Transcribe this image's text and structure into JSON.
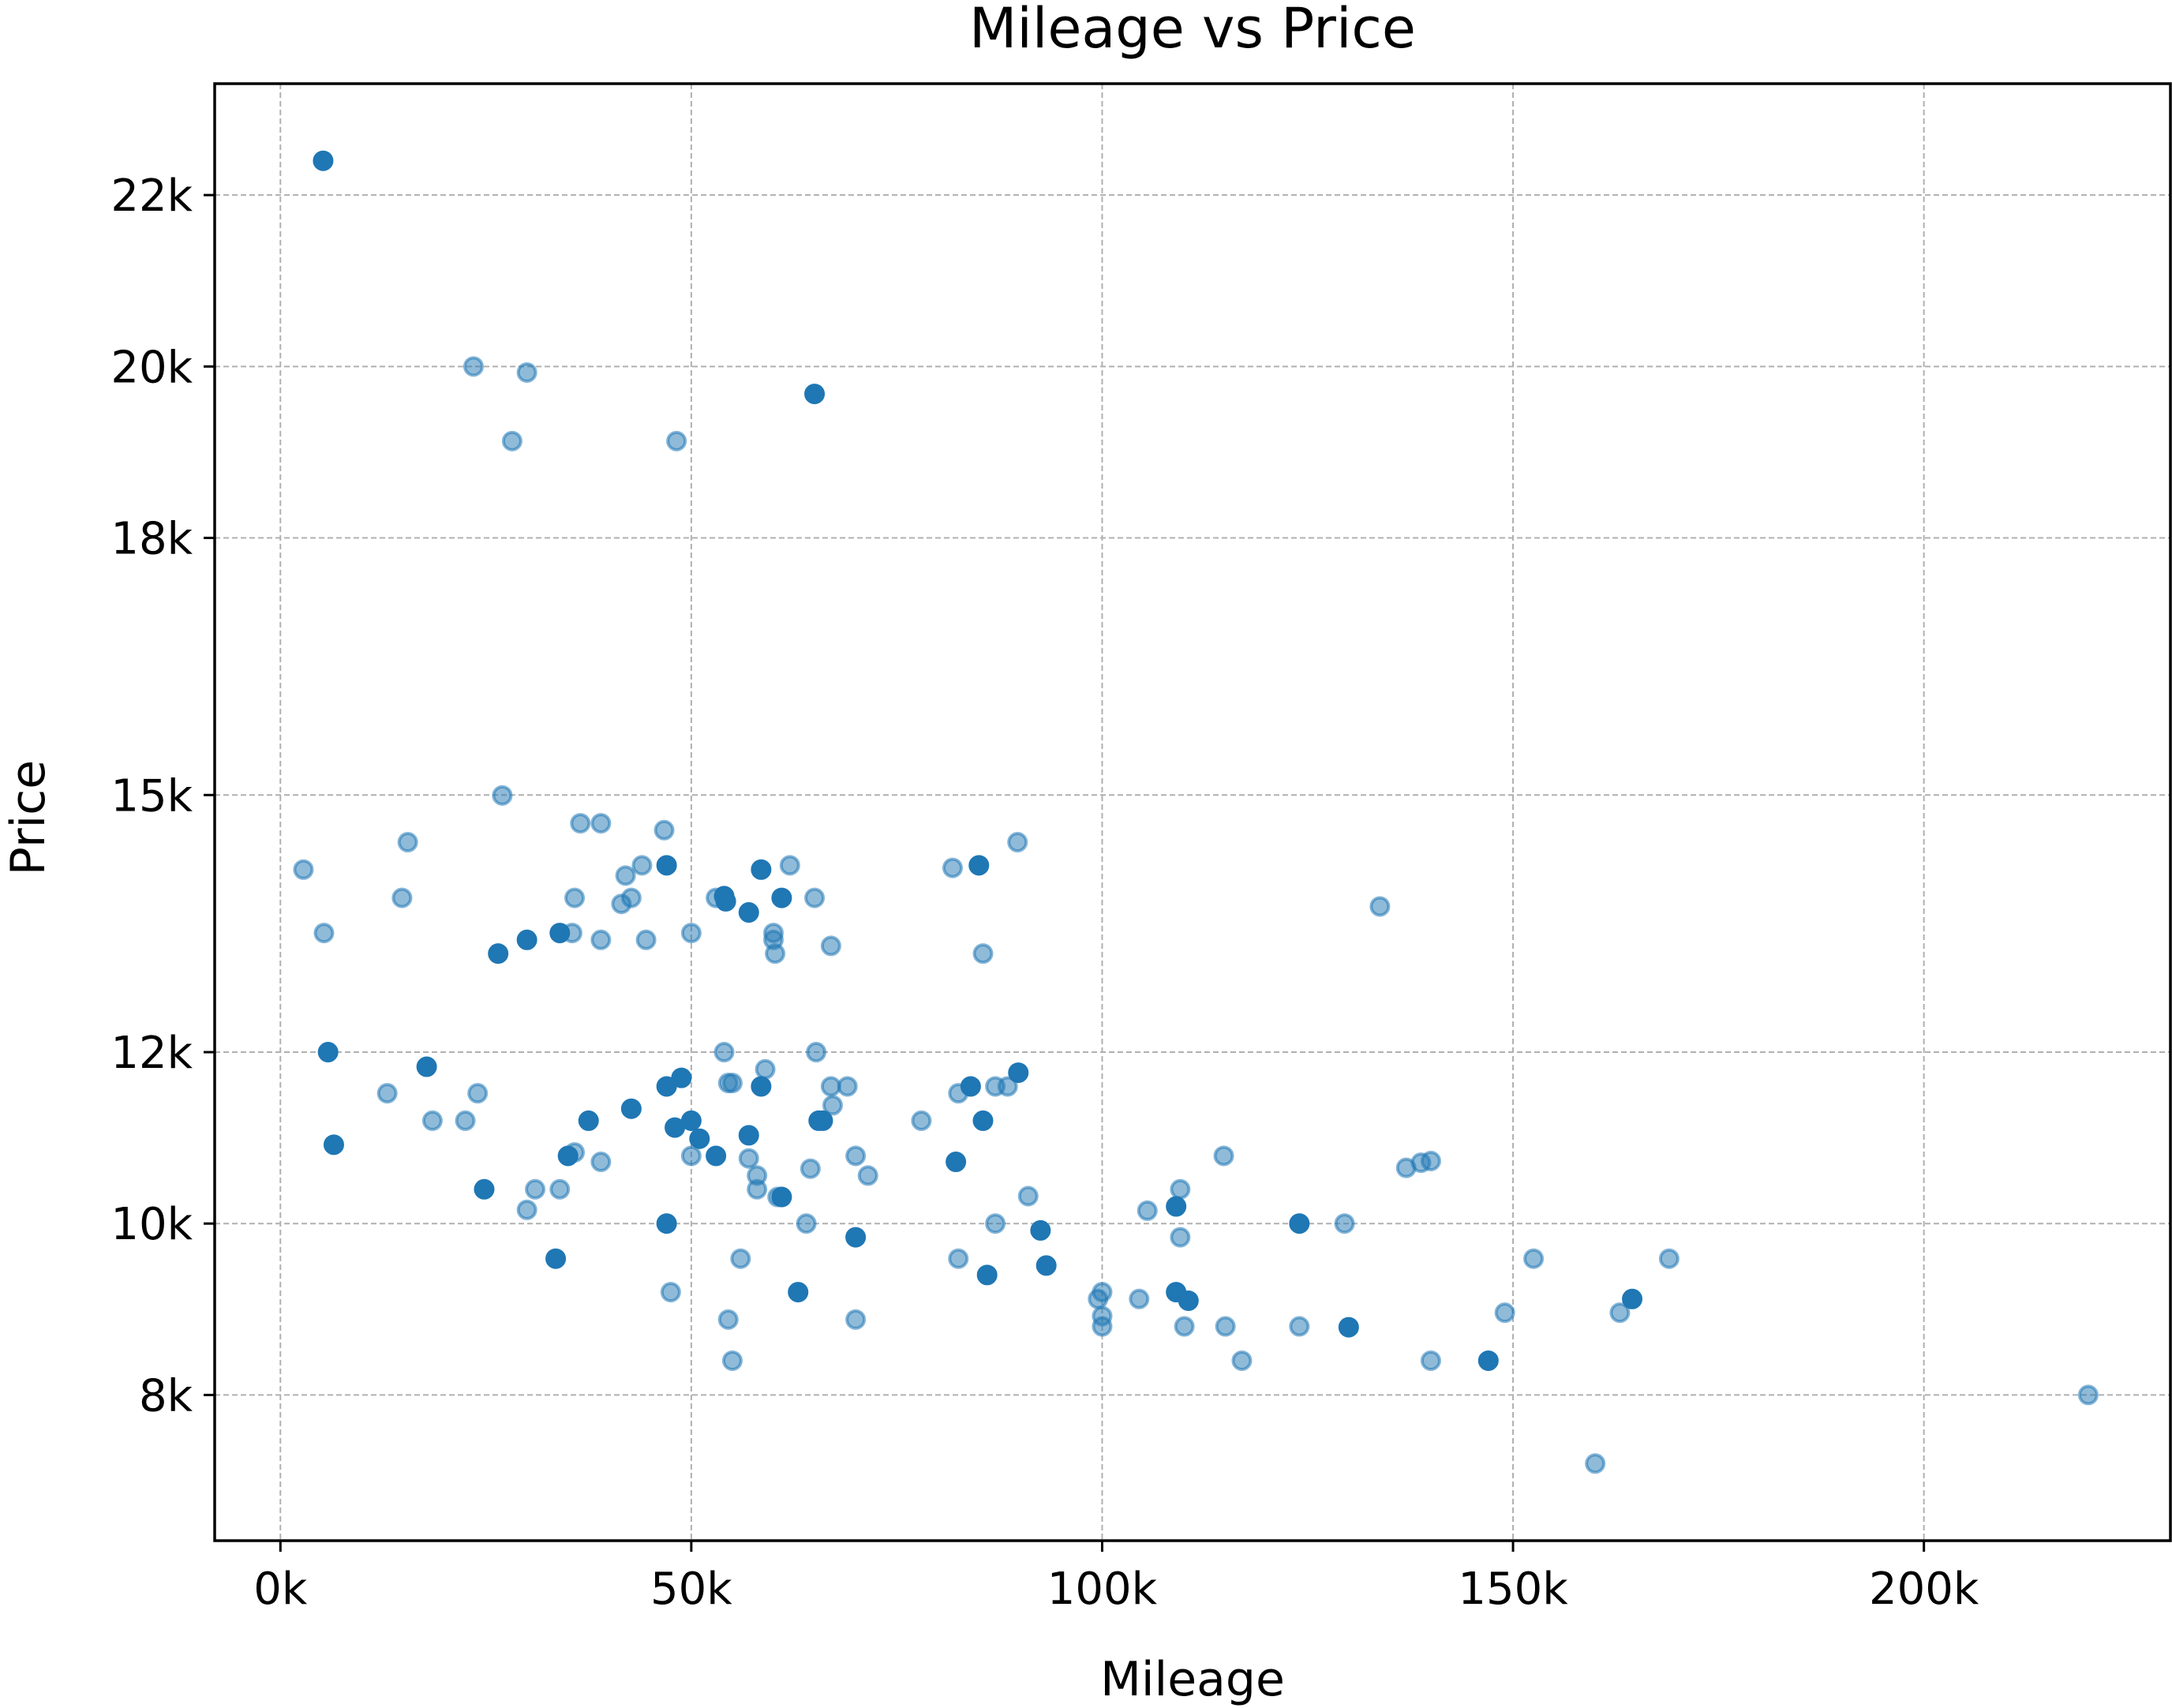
{
  "chart_data": {
    "type": "scatter",
    "title": "Mileage vs Price",
    "xlabel": "Mileage",
    "ylabel": "Price",
    "xlim": [
      -8000,
      230000
    ],
    "ylim": [
      6300,
      23300
    ],
    "grid": true,
    "color": "#1f77b4",
    "x_ticks": [
      {
        "value": 0,
        "label": "0k"
      },
      {
        "value": 50000,
        "label": "50k"
      },
      {
        "value": 100000,
        "label": "100k"
      },
      {
        "value": 150000,
        "label": "150k"
      },
      {
        "value": 200000,
        "label": "200k"
      }
    ],
    "y_ticks": [
      {
        "value": 8000,
        "label": "8k"
      },
      {
        "value": 10000,
        "label": "10k"
      },
      {
        "value": 12000,
        "label": "12k"
      },
      {
        "value": 15000,
        "label": "15k"
      },
      {
        "value": 18000,
        "label": "18k"
      },
      {
        "value": 20000,
        "label": "20k"
      },
      {
        "value": 22000,
        "label": "22k"
      }
    ],
    "points": [
      {
        "x": 5200,
        "y": 22400,
        "dark": true
      },
      {
        "x": 23500,
        "y": 20000,
        "dark": false
      },
      {
        "x": 30000,
        "y": 19930,
        "dark": false
      },
      {
        "x": 65000,
        "y": 19680,
        "dark": true
      },
      {
        "x": 28200,
        "y": 19130,
        "dark": false
      },
      {
        "x": 48200,
        "y": 19130,
        "dark": false
      },
      {
        "x": 27000,
        "y": 14995,
        "dark": false
      },
      {
        "x": 36500,
        "y": 14670,
        "dark": false
      },
      {
        "x": 39000,
        "y": 14670,
        "dark": false
      },
      {
        "x": 46700,
        "y": 14590,
        "dark": false
      },
      {
        "x": 15500,
        "y": 14450,
        "dark": false
      },
      {
        "x": 89700,
        "y": 14450,
        "dark": false
      },
      {
        "x": 2800,
        "y": 14130,
        "dark": false
      },
      {
        "x": 44000,
        "y": 14180,
        "dark": false
      },
      {
        "x": 47000,
        "y": 14180,
        "dark": true
      },
      {
        "x": 62000,
        "y": 14180,
        "dark": false
      },
      {
        "x": 85000,
        "y": 14180,
        "dark": true
      },
      {
        "x": 81800,
        "y": 14150,
        "dark": false
      },
      {
        "x": 58500,
        "y": 14130,
        "dark": true
      },
      {
        "x": 42000,
        "y": 14060,
        "dark": false
      },
      {
        "x": 14800,
        "y": 13800,
        "dark": false
      },
      {
        "x": 35800,
        "y": 13800,
        "dark": false
      },
      {
        "x": 42700,
        "y": 13800,
        "dark": false
      },
      {
        "x": 53000,
        "y": 13800,
        "dark": false
      },
      {
        "x": 54000,
        "y": 13820,
        "dark": true
      },
      {
        "x": 61000,
        "y": 13800,
        "dark": true
      },
      {
        "x": 65000,
        "y": 13800,
        "dark": false
      },
      {
        "x": 41500,
        "y": 13730,
        "dark": false
      },
      {
        "x": 54200,
        "y": 13760,
        "dark": true
      },
      {
        "x": 57000,
        "y": 13630,
        "dark": true
      },
      {
        "x": 133800,
        "y": 13700,
        "dark": false
      },
      {
        "x": 5300,
        "y": 13390,
        "dark": false
      },
      {
        "x": 34000,
        "y": 13390,
        "dark": true
      },
      {
        "x": 35500,
        "y": 13390,
        "dark": false
      },
      {
        "x": 50000,
        "y": 13390,
        "dark": false
      },
      {
        "x": 60000,
        "y": 13390,
        "dark": false
      },
      {
        "x": 30000,
        "y": 13310,
        "dark": true
      },
      {
        "x": 39000,
        "y": 13310,
        "dark": false
      },
      {
        "x": 44500,
        "y": 13310,
        "dark": false
      },
      {
        "x": 60000,
        "y": 13310,
        "dark": false
      },
      {
        "x": 67000,
        "y": 13240,
        "dark": false
      },
      {
        "x": 26500,
        "y": 13150,
        "dark": true
      },
      {
        "x": 60200,
        "y": 13150,
        "dark": false
      },
      {
        "x": 85500,
        "y": 13150,
        "dark": false
      },
      {
        "x": 5800,
        "y": 12000,
        "dark": true
      },
      {
        "x": 54000,
        "y": 12000,
        "dark": false
      },
      {
        "x": 65200,
        "y": 12000,
        "dark": false
      },
      {
        "x": 17800,
        "y": 11830,
        "dark": true
      },
      {
        "x": 59000,
        "y": 11800,
        "dark": false
      },
      {
        "x": 89800,
        "y": 11760,
        "dark": true
      },
      {
        "x": 48800,
        "y": 11700,
        "dark": true
      },
      {
        "x": 54500,
        "y": 11640,
        "dark": false
      },
      {
        "x": 55000,
        "y": 11640,
        "dark": false
      },
      {
        "x": 47000,
        "y": 11600,
        "dark": true
      },
      {
        "x": 58500,
        "y": 11600,
        "dark": true
      },
      {
        "x": 67000,
        "y": 11600,
        "dark": false
      },
      {
        "x": 69000,
        "y": 11600,
        "dark": false
      },
      {
        "x": 84000,
        "y": 11600,
        "dark": true
      },
      {
        "x": 87000,
        "y": 11600,
        "dark": false
      },
      {
        "x": 88500,
        "y": 11600,
        "dark": false
      },
      {
        "x": 13000,
        "y": 11520,
        "dark": false
      },
      {
        "x": 24000,
        "y": 11520,
        "dark": false
      },
      {
        "x": 82500,
        "y": 11520,
        "dark": false
      },
      {
        "x": 42700,
        "y": 11340,
        "dark": true
      },
      {
        "x": 67200,
        "y": 11380,
        "dark": false
      },
      {
        "x": 18500,
        "y": 11200,
        "dark": false
      },
      {
        "x": 22500,
        "y": 11200,
        "dark": false
      },
      {
        "x": 37500,
        "y": 11200,
        "dark": true
      },
      {
        "x": 50000,
        "y": 11200,
        "dark": true
      },
      {
        "x": 65500,
        "y": 11200,
        "dark": true
      },
      {
        "x": 66000,
        "y": 11200,
        "dark": true
      },
      {
        "x": 78000,
        "y": 11200,
        "dark": false
      },
      {
        "x": 85500,
        "y": 11200,
        "dark": true
      },
      {
        "x": 48000,
        "y": 11120,
        "dark": true
      },
      {
        "x": 57000,
        "y": 11030,
        "dark": true
      },
      {
        "x": 51000,
        "y": 10990,
        "dark": true
      },
      {
        "x": 6500,
        "y": 10920,
        "dark": true
      },
      {
        "x": 35800,
        "y": 10830,
        "dark": false
      },
      {
        "x": 35000,
        "y": 10790,
        "dark": true
      },
      {
        "x": 50000,
        "y": 10790,
        "dark": false
      },
      {
        "x": 53000,
        "y": 10790,
        "dark": true
      },
      {
        "x": 57000,
        "y": 10760,
        "dark": false
      },
      {
        "x": 70000,
        "y": 10790,
        "dark": false
      },
      {
        "x": 114800,
        "y": 10790,
        "dark": false
      },
      {
        "x": 39000,
        "y": 10720,
        "dark": false
      },
      {
        "x": 82200,
        "y": 10720,
        "dark": true
      },
      {
        "x": 140000,
        "y": 10730,
        "dark": false
      },
      {
        "x": 138800,
        "y": 10710,
        "dark": false
      },
      {
        "x": 137000,
        "y": 10650,
        "dark": false
      },
      {
        "x": 64500,
        "y": 10640,
        "dark": false
      },
      {
        "x": 58000,
        "y": 10560,
        "dark": false
      },
      {
        "x": 71500,
        "y": 10560,
        "dark": false
      },
      {
        "x": 24800,
        "y": 10400,
        "dark": true
      },
      {
        "x": 31000,
        "y": 10400,
        "dark": false
      },
      {
        "x": 34000,
        "y": 10400,
        "dark": false
      },
      {
        "x": 58000,
        "y": 10400,
        "dark": false
      },
      {
        "x": 109500,
        "y": 10400,
        "dark": false
      },
      {
        "x": 60500,
        "y": 10310,
        "dark": false
      },
      {
        "x": 61000,
        "y": 10310,
        "dark": true
      },
      {
        "x": 91000,
        "y": 10320,
        "dark": false
      },
      {
        "x": 30000,
        "y": 10160,
        "dark": false
      },
      {
        "x": 105500,
        "y": 10150,
        "dark": false
      },
      {
        "x": 109000,
        "y": 10200,
        "dark": true
      },
      {
        "x": 47000,
        "y": 10000,
        "dark": true
      },
      {
        "x": 64000,
        "y": 10000,
        "dark": false
      },
      {
        "x": 87000,
        "y": 10000,
        "dark": false
      },
      {
        "x": 124000,
        "y": 10000,
        "dark": true
      },
      {
        "x": 129500,
        "y": 10000,
        "dark": false
      },
      {
        "x": 92500,
        "y": 9920,
        "dark": true
      },
      {
        "x": 70000,
        "y": 9840,
        "dark": true
      },
      {
        "x": 109500,
        "y": 9840,
        "dark": false
      },
      {
        "x": 33500,
        "y": 9590,
        "dark": true
      },
      {
        "x": 56000,
        "y": 9590,
        "dark": false
      },
      {
        "x": 82500,
        "y": 9590,
        "dark": false
      },
      {
        "x": 152500,
        "y": 9590,
        "dark": false
      },
      {
        "x": 169000,
        "y": 9590,
        "dark": false
      },
      {
        "x": 93200,
        "y": 9510,
        "dark": true
      },
      {
        "x": 86000,
        "y": 9400,
        "dark": true
      },
      {
        "x": 47500,
        "y": 9200,
        "dark": false
      },
      {
        "x": 63000,
        "y": 9200,
        "dark": true
      },
      {
        "x": 100000,
        "y": 9200,
        "dark": false
      },
      {
        "x": 109000,
        "y": 9200,
        "dark": true
      },
      {
        "x": 99500,
        "y": 9120,
        "dark": false
      },
      {
        "x": 104500,
        "y": 9120,
        "dark": false
      },
      {
        "x": 110500,
        "y": 9100,
        "dark": true
      },
      {
        "x": 164500,
        "y": 9120,
        "dark": true
      },
      {
        "x": 149000,
        "y": 8960,
        "dark": false
      },
      {
        "x": 163000,
        "y": 8960,
        "dark": false
      },
      {
        "x": 100000,
        "y": 8920,
        "dark": false
      },
      {
        "x": 54500,
        "y": 8880,
        "dark": false
      },
      {
        "x": 70000,
        "y": 8880,
        "dark": false
      },
      {
        "x": 100000,
        "y": 8800,
        "dark": false
      },
      {
        "x": 110000,
        "y": 8800,
        "dark": false
      },
      {
        "x": 115000,
        "y": 8800,
        "dark": false
      },
      {
        "x": 124000,
        "y": 8800,
        "dark": false
      },
      {
        "x": 130000,
        "y": 8790,
        "dark": true
      },
      {
        "x": 55000,
        "y": 8400,
        "dark": false
      },
      {
        "x": 117000,
        "y": 8400,
        "dark": false
      },
      {
        "x": 140000,
        "y": 8400,
        "dark": false
      },
      {
        "x": 147000,
        "y": 8400,
        "dark": true
      },
      {
        "x": 220000,
        "y": 8000,
        "dark": false
      },
      {
        "x": 160000,
        "y": 7200,
        "dark": false
      }
    ]
  }
}
